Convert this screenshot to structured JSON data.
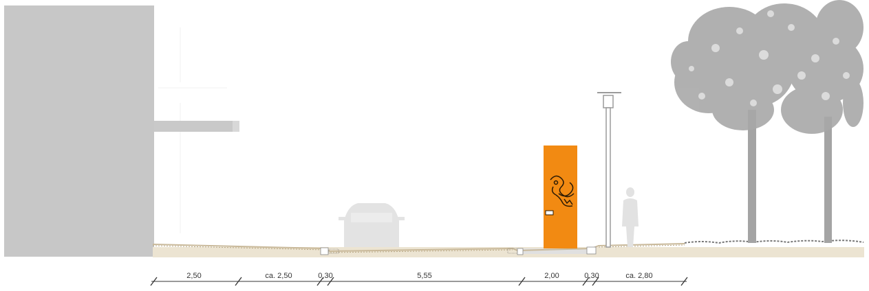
{
  "dimensions": {
    "segments": [
      "2,50",
      "ca. 2,50",
      "0,30",
      "5,55",
      "2,00",
      "0,30",
      "ca. 2,80"
    ]
  },
  "colors": {
    "building": "#c7c7c7",
    "ground": "#ece4d2",
    "curb_edge": "#c9b99a",
    "kiosk": "#f28a12",
    "tree": "#9a9a9a",
    "silhouette": "#d4d4d4",
    "dim_line": "#333333"
  },
  "icons": {
    "kiosk_emblem": "dragon-logo-icon",
    "kiosk_tag": "nameplate-icon"
  }
}
